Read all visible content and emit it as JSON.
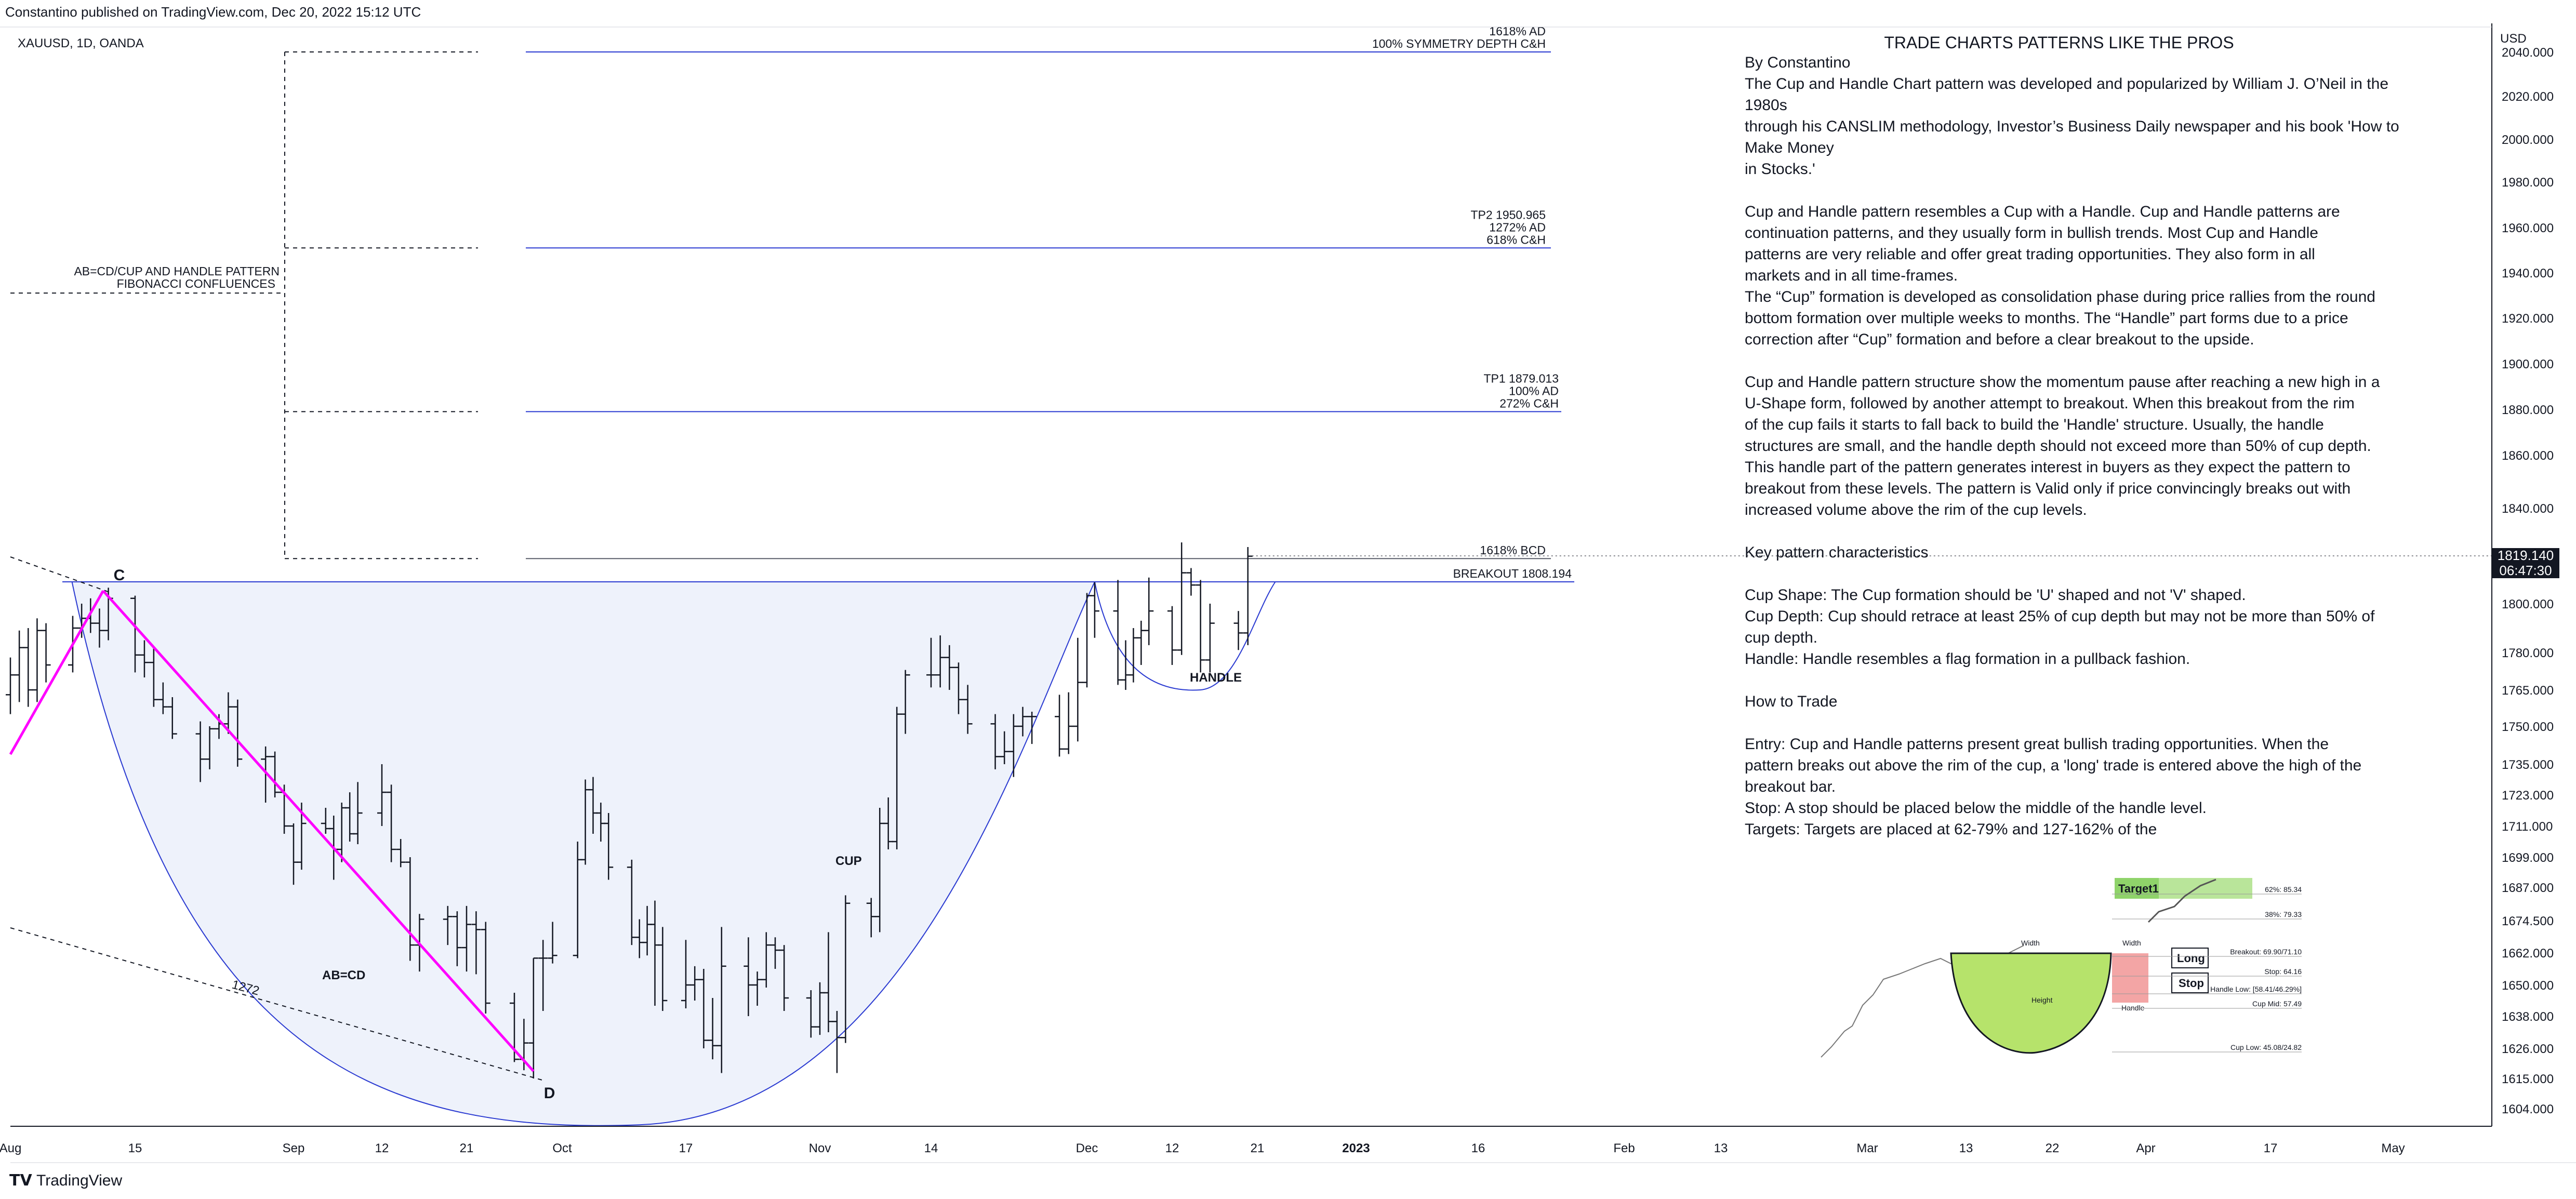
{
  "header": {
    "published": "Constantino published on TradingView.com, Dec 20, 2022 15:12 UTC",
    "symbol": "XAUUSD, 1D, OANDA"
  },
  "footer": {
    "brand": "TradingView"
  },
  "price_axis": {
    "unit": "USD",
    "ticks": [
      "2040.000",
      "2020.000",
      "2000.000",
      "1980.000",
      "1960.000",
      "1940.000",
      "1920.000",
      "1900.000",
      "1880.000",
      "1860.000",
      "1840.000",
      "1819.140",
      "1800.000",
      "1780.000",
      "1765.000",
      "1750.000",
      "1735.000",
      "1723.000",
      "1711.000",
      "1699.000",
      "1687.000",
      "1674.500",
      "1662.000",
      "1650.000",
      "1638.000",
      "1626.000",
      "1615.000",
      "1604.000"
    ],
    "last_price": "1819.140",
    "countdown": "06:47:30"
  },
  "time_axis": {
    "labels": [
      "Aug",
      "15",
      "Sep",
      "12",
      "21",
      "Oct",
      "17",
      "Nov",
      "14",
      "Dec",
      "12",
      "21",
      "2023",
      "16",
      "Feb",
      "13",
      "Mar",
      "13",
      "22",
      "Apr",
      "17",
      "May"
    ]
  },
  "chart_data": {
    "type": "ohlc",
    "title": "XAUUSD, 1D, OANDA",
    "x_range": [
      "2022-08-01",
      "2023-05-10"
    ],
    "y_range": [
      1600,
      2045
    ],
    "bars": [
      [
        "2022-08-01",
        1763,
        1778,
        1755,
        1771
      ],
      [
        "2022-08-02",
        1771,
        1789,
        1760,
        1782
      ],
      [
        "2022-08-03",
        1782,
        1790,
        1758,
        1765
      ],
      [
        "2022-08-04",
        1765,
        1794,
        1760,
        1789
      ],
      [
        "2022-08-05",
        1789,
        1792,
        1768,
        1775
      ],
      [
        "2022-08-08",
        1775,
        1795,
        1772,
        1790
      ],
      [
        "2022-08-09",
        1790,
        1800,
        1786,
        1794
      ],
      [
        "2022-08-10",
        1794,
        1802,
        1788,
        1792
      ],
      [
        "2022-08-11",
        1792,
        1798,
        1782,
        1789
      ],
      [
        "2022-08-12",
        1789,
        1806,
        1785,
        1802
      ],
      [
        "2022-08-15",
        1802,
        1803,
        1772,
        1779
      ],
      [
        "2022-08-16",
        1779,
        1785,
        1770,
        1776
      ],
      [
        "2022-08-17",
        1776,
        1782,
        1758,
        1761
      ],
      [
        "2022-08-18",
        1761,
        1768,
        1755,
        1758
      ],
      [
        "2022-08-19",
        1758,
        1762,
        1745,
        1747
      ],
      [
        "2022-08-22",
        1747,
        1752,
        1728,
        1737
      ],
      [
        "2022-08-23",
        1737,
        1750,
        1733,
        1749
      ],
      [
        "2022-08-24",
        1749,
        1755,
        1745,
        1751
      ],
      [
        "2022-08-25",
        1751,
        1764,
        1747,
        1758
      ],
      [
        "2022-08-26",
        1758,
        1761,
        1734,
        1737
      ],
      [
        "2022-08-29",
        1737,
        1742,
        1720,
        1738
      ],
      [
        "2022-08-30",
        1738,
        1740,
        1722,
        1724
      ],
      [
        "2022-08-31",
        1724,
        1727,
        1708,
        1711
      ],
      [
        "2022-09-01",
        1711,
        1712,
        1688,
        1697
      ],
      [
        "2022-09-02",
        1697,
        1720,
        1694,
        1712
      ],
      [
        "2022-09-05",
        1712,
        1718,
        1708,
        1710
      ],
      [
        "2022-09-06",
        1710,
        1715,
        1690,
        1702
      ],
      [
        "2022-09-07",
        1702,
        1720,
        1697,
        1718
      ],
      [
        "2022-09-08",
        1718,
        1724,
        1705,
        1708
      ],
      [
        "2022-09-09",
        1708,
        1728,
        1704,
        1716
      ],
      [
        "2022-09-12",
        1716,
        1735,
        1711,
        1724
      ],
      [
        "2022-09-13",
        1724,
        1727,
        1697,
        1702
      ],
      [
        "2022-09-14",
        1702,
        1706,
        1695,
        1697
      ],
      [
        "2022-09-15",
        1697,
        1699,
        1659,
        1665
      ],
      [
        "2022-09-16",
        1665,
        1677,
        1655,
        1675
      ],
      [
        "2022-09-19",
        1675,
        1680,
        1665,
        1676
      ],
      [
        "2022-09-20",
        1676,
        1678,
        1657,
        1664
      ],
      [
        "2022-09-21",
        1664,
        1680,
        1655,
        1673
      ],
      [
        "2022-09-22",
        1673,
        1678,
        1654,
        1671
      ],
      [
        "2022-09-23",
        1671,
        1674,
        1639,
        1643
      ],
      [
        "2022-09-26",
        1643,
        1647,
        1621,
        1622
      ],
      [
        "2022-09-27",
        1622,
        1637,
        1618,
        1628
      ],
      [
        "2022-09-28",
        1628,
        1660,
        1615,
        1660
      ],
      [
        "2022-09-29",
        1660,
        1667,
        1640,
        1660
      ],
      [
        "2022-09-30",
        1660,
        1674,
        1658,
        1661
      ],
      [
        "2022-10-03",
        1661,
        1705,
        1660,
        1698
      ],
      [
        "2022-10-04",
        1698,
        1729,
        1696,
        1725
      ],
      [
        "2022-10-05",
        1725,
        1730,
        1708,
        1716
      ],
      [
        "2022-10-06",
        1716,
        1720,
        1705,
        1712
      ],
      [
        "2022-10-07",
        1712,
        1716,
        1690,
        1695
      ],
      [
        "2022-10-10",
        1695,
        1698,
        1665,
        1668
      ],
      [
        "2022-10-11",
        1668,
        1675,
        1660,
        1666
      ],
      [
        "2022-10-12",
        1666,
        1680,
        1661,
        1673
      ],
      [
        "2022-10-13",
        1673,
        1682,
        1642,
        1665
      ],
      [
        "2022-10-14",
        1665,
        1672,
        1640,
        1644
      ],
      [
        "2022-10-17",
        1644,
        1667,
        1641,
        1650
      ],
      [
        "2022-10-18",
        1650,
        1657,
        1644,
        1652
      ],
      [
        "2022-10-19",
        1652,
        1656,
        1626,
        1629
      ],
      [
        "2022-10-20",
        1629,
        1645,
        1622,
        1627
      ],
      [
        "2022-10-21",
        1627,
        1672,
        1617,
        1657
      ],
      [
        "2022-10-24",
        1657,
        1668,
        1638,
        1650
      ],
      [
        "2022-10-25",
        1650,
        1655,
        1642,
        1652
      ],
      [
        "2022-10-26",
        1652,
        1670,
        1649,
        1665
      ],
      [
        "2022-10-27",
        1665,
        1668,
        1656,
        1663
      ],
      [
        "2022-10-28",
        1663,
        1665,
        1640,
        1645
      ],
      [
        "2022-10-31",
        1645,
        1648,
        1630,
        1634
      ],
      [
        "2022-11-01",
        1634,
        1651,
        1631,
        1647
      ],
      [
        "2022-11-02",
        1647,
        1670,
        1632,
        1636
      ],
      [
        "2022-11-03",
        1636,
        1640,
        1617,
        1630
      ],
      [
        "2022-11-04",
        1630,
        1684,
        1628,
        1681
      ],
      [
        "2022-11-07",
        1681,
        1683,
        1668,
        1676
      ],
      [
        "2022-11-08",
        1676,
        1718,
        1670,
        1712
      ],
      [
        "2022-11-09",
        1712,
        1722,
        1702,
        1705
      ],
      [
        "2022-11-10",
        1705,
        1758,
        1702,
        1755
      ],
      [
        "2022-11-11",
        1755,
        1773,
        1747,
        1771
      ],
      [
        "2022-11-14",
        1771,
        1786,
        1766,
        1771
      ],
      [
        "2022-11-15",
        1771,
        1787,
        1766,
        1778
      ],
      [
        "2022-11-16",
        1778,
        1783,
        1765,
        1774
      ],
      [
        "2022-11-17",
        1774,
        1776,
        1755,
        1761
      ],
      [
        "2022-11-18",
        1761,
        1767,
        1747,
        1751
      ],
      [
        "2022-11-21",
        1751,
        1755,
        1733,
        1738
      ],
      [
        "2022-11-22",
        1738,
        1748,
        1735,
        1740
      ],
      [
        "2022-11-23",
        1740,
        1755,
        1730,
        1750
      ],
      [
        "2022-11-24",
        1750,
        1758,
        1746,
        1754
      ],
      [
        "2022-11-25",
        1754,
        1756,
        1743,
        1754
      ],
      [
        "2022-11-28",
        1754,
        1763,
        1738,
        1741
      ],
      [
        "2022-11-29",
        1741,
        1764,
        1739,
        1750
      ],
      [
        "2022-11-30",
        1750,
        1786,
        1744,
        1768
      ],
      [
        "2022-12-01",
        1768,
        1804,
        1766,
        1803
      ],
      [
        "2022-12-02",
        1803,
        1808,
        1786,
        1797
      ],
      [
        "2022-12-05",
        1797,
        1809,
        1767,
        1769
      ],
      [
        "2022-12-06",
        1769,
        1785,
        1765,
        1771
      ],
      [
        "2022-12-07",
        1771,
        1790,
        1768,
        1786
      ],
      [
        "2022-12-08",
        1786,
        1793,
        1775,
        1789
      ],
      [
        "2022-12-09",
        1789,
        1810,
        1783,
        1797
      ],
      [
        "2022-12-12",
        1797,
        1799,
        1775,
        1781
      ],
      [
        "2022-12-13",
        1781,
        1825,
        1779,
        1812
      ],
      [
        "2022-12-14",
        1812,
        1814,
        1803,
        1807
      ],
      [
        "2022-12-15",
        1807,
        1809,
        1772,
        1777
      ],
      [
        "2022-12-16",
        1777,
        1800,
        1772,
        1792
      ],
      [
        "2022-12-19",
        1792,
        1797,
        1781,
        1788
      ],
      [
        "2022-12-20",
        1788,
        1823,
        1783,
        1819
      ]
    ],
    "drawings": {
      "levels": [
        {
          "labels": [
            "1618% AD",
            "100% SYMMETRY DEPTH C&H"
          ],
          "price": 2040
        },
        {
          "labels": [
            "TP2 1950.965",
            "1272% AD",
            "618% C&H"
          ],
          "price": 1950.965
        },
        {
          "labels": [
            "TP1 1879.013",
            "100% AD",
            "272% C&H"
          ],
          "price": 1879.013
        },
        {
          "labels": [
            "1618% BCD"
          ],
          "price": 1818
        },
        {
          "labels": [
            "BREAKOUT 1808.194"
          ],
          "price": 1808.194
        }
      ],
      "pattern_labels": [
        "C",
        "D",
        "AB=CD",
        "CUP",
        "HANDLE",
        "1272"
      ],
      "confluence_label": [
        "AB=CD/CUP AND HANDLE PATTERN",
        "FIBONACCI CONFLUENCES"
      ],
      "point_c": {
        "date": "2022-08-12",
        "price": 1806
      },
      "point_d": {
        "date": "2022-09-28",
        "price": 1615
      },
      "cup_low": {
        "date": "2022-10-11",
        "price": 1616
      },
      "handle_low": {
        "date": "2022-12-15",
        "price": 1765
      }
    }
  },
  "article": {
    "title": "TRADE CHARTS PATTERNS LIKE THE PROS",
    "body": "By Constantino\nThe Cup and Handle Chart pattern was developed and popularized by William J. O’Neil in the 1980s\nthrough his CANSLIM methodology, Investor’s Business Daily newspaper and his book 'How to Make Money\nin Stocks.'\n\nCup and Handle pattern resembles a Cup with a Handle. Cup and Handle patterns are\ncontinuation patterns, and they usually form in bullish trends. Most Cup and Handle\npatterns are very reliable and offer great trading opportunities. They also form in all\nmarkets and in all time-frames.\nThe “Cup” formation is developed as consolidation phase during price rallies from the round\nbottom formation over multiple weeks to months. The “Handle” part forms due to a price\ncorrection after “Cup” formation and before a clear breakout to the upside.\n\nCup and Handle pattern structure show the momentum pause after reaching a new high in a\nU-Shape form, followed by another attempt to breakout. When this breakout from the rim\nof the cup fails it starts to fall back to build the 'Handle' structure. Usually, the handle\nstructures are small, and the handle depth should not exceed more than 50% of cup depth.\nThis handle part of the pattern generates interest in buyers as they expect the pattern to\nbreakout from these levels. The pattern is Valid only if price convincingly breaks out with\nincreased volume above the rim of the cup levels.\n\nKey pattern characteristics\n\nCup Shape: The Cup formation should be 'U' shaped and not 'V' shaped.\nCup Depth: Cup should retrace at least 25% of cup depth but may not be more than 50% of\ncup depth.\nHandle: Handle resembles a flag formation in a pullback fashion.\n\nHow to Trade\n\nEntry: Cup and Handle patterns present great bullish trading opportunities. When the\npattern breaks out above the rim of the cup, a 'long' trade is entered above the high of the\nbreakout bar.\nStop: A stop should be placed below the middle of the handle level.\nTargets: Targets are placed at 62-79% and 127-162% of the"
  },
  "inset": {
    "target": "Target1",
    "long": "Long",
    "stop": "Stop",
    "width": "Width",
    "height": "Height",
    "handle": "Handle",
    "labels": [
      "62%: 85.34",
      "38%: 79.33",
      "Breakout: 69.90/71.10",
      "Stop: 64.16",
      "Handle Low: [58.41/46.29%]",
      "Cup Mid: 57.49",
      "Cup Low: 45.08/24.82"
    ],
    "colors": {
      "cup": "#b6e36b",
      "handle": "#f3a5a5",
      "target": "#8fd36a"
    }
  },
  "colors": {
    "level_line": "#2a3ad1",
    "cup_fill": "#eef2fb",
    "pattern_line": "#ff00ff",
    "bar": "#131722"
  }
}
